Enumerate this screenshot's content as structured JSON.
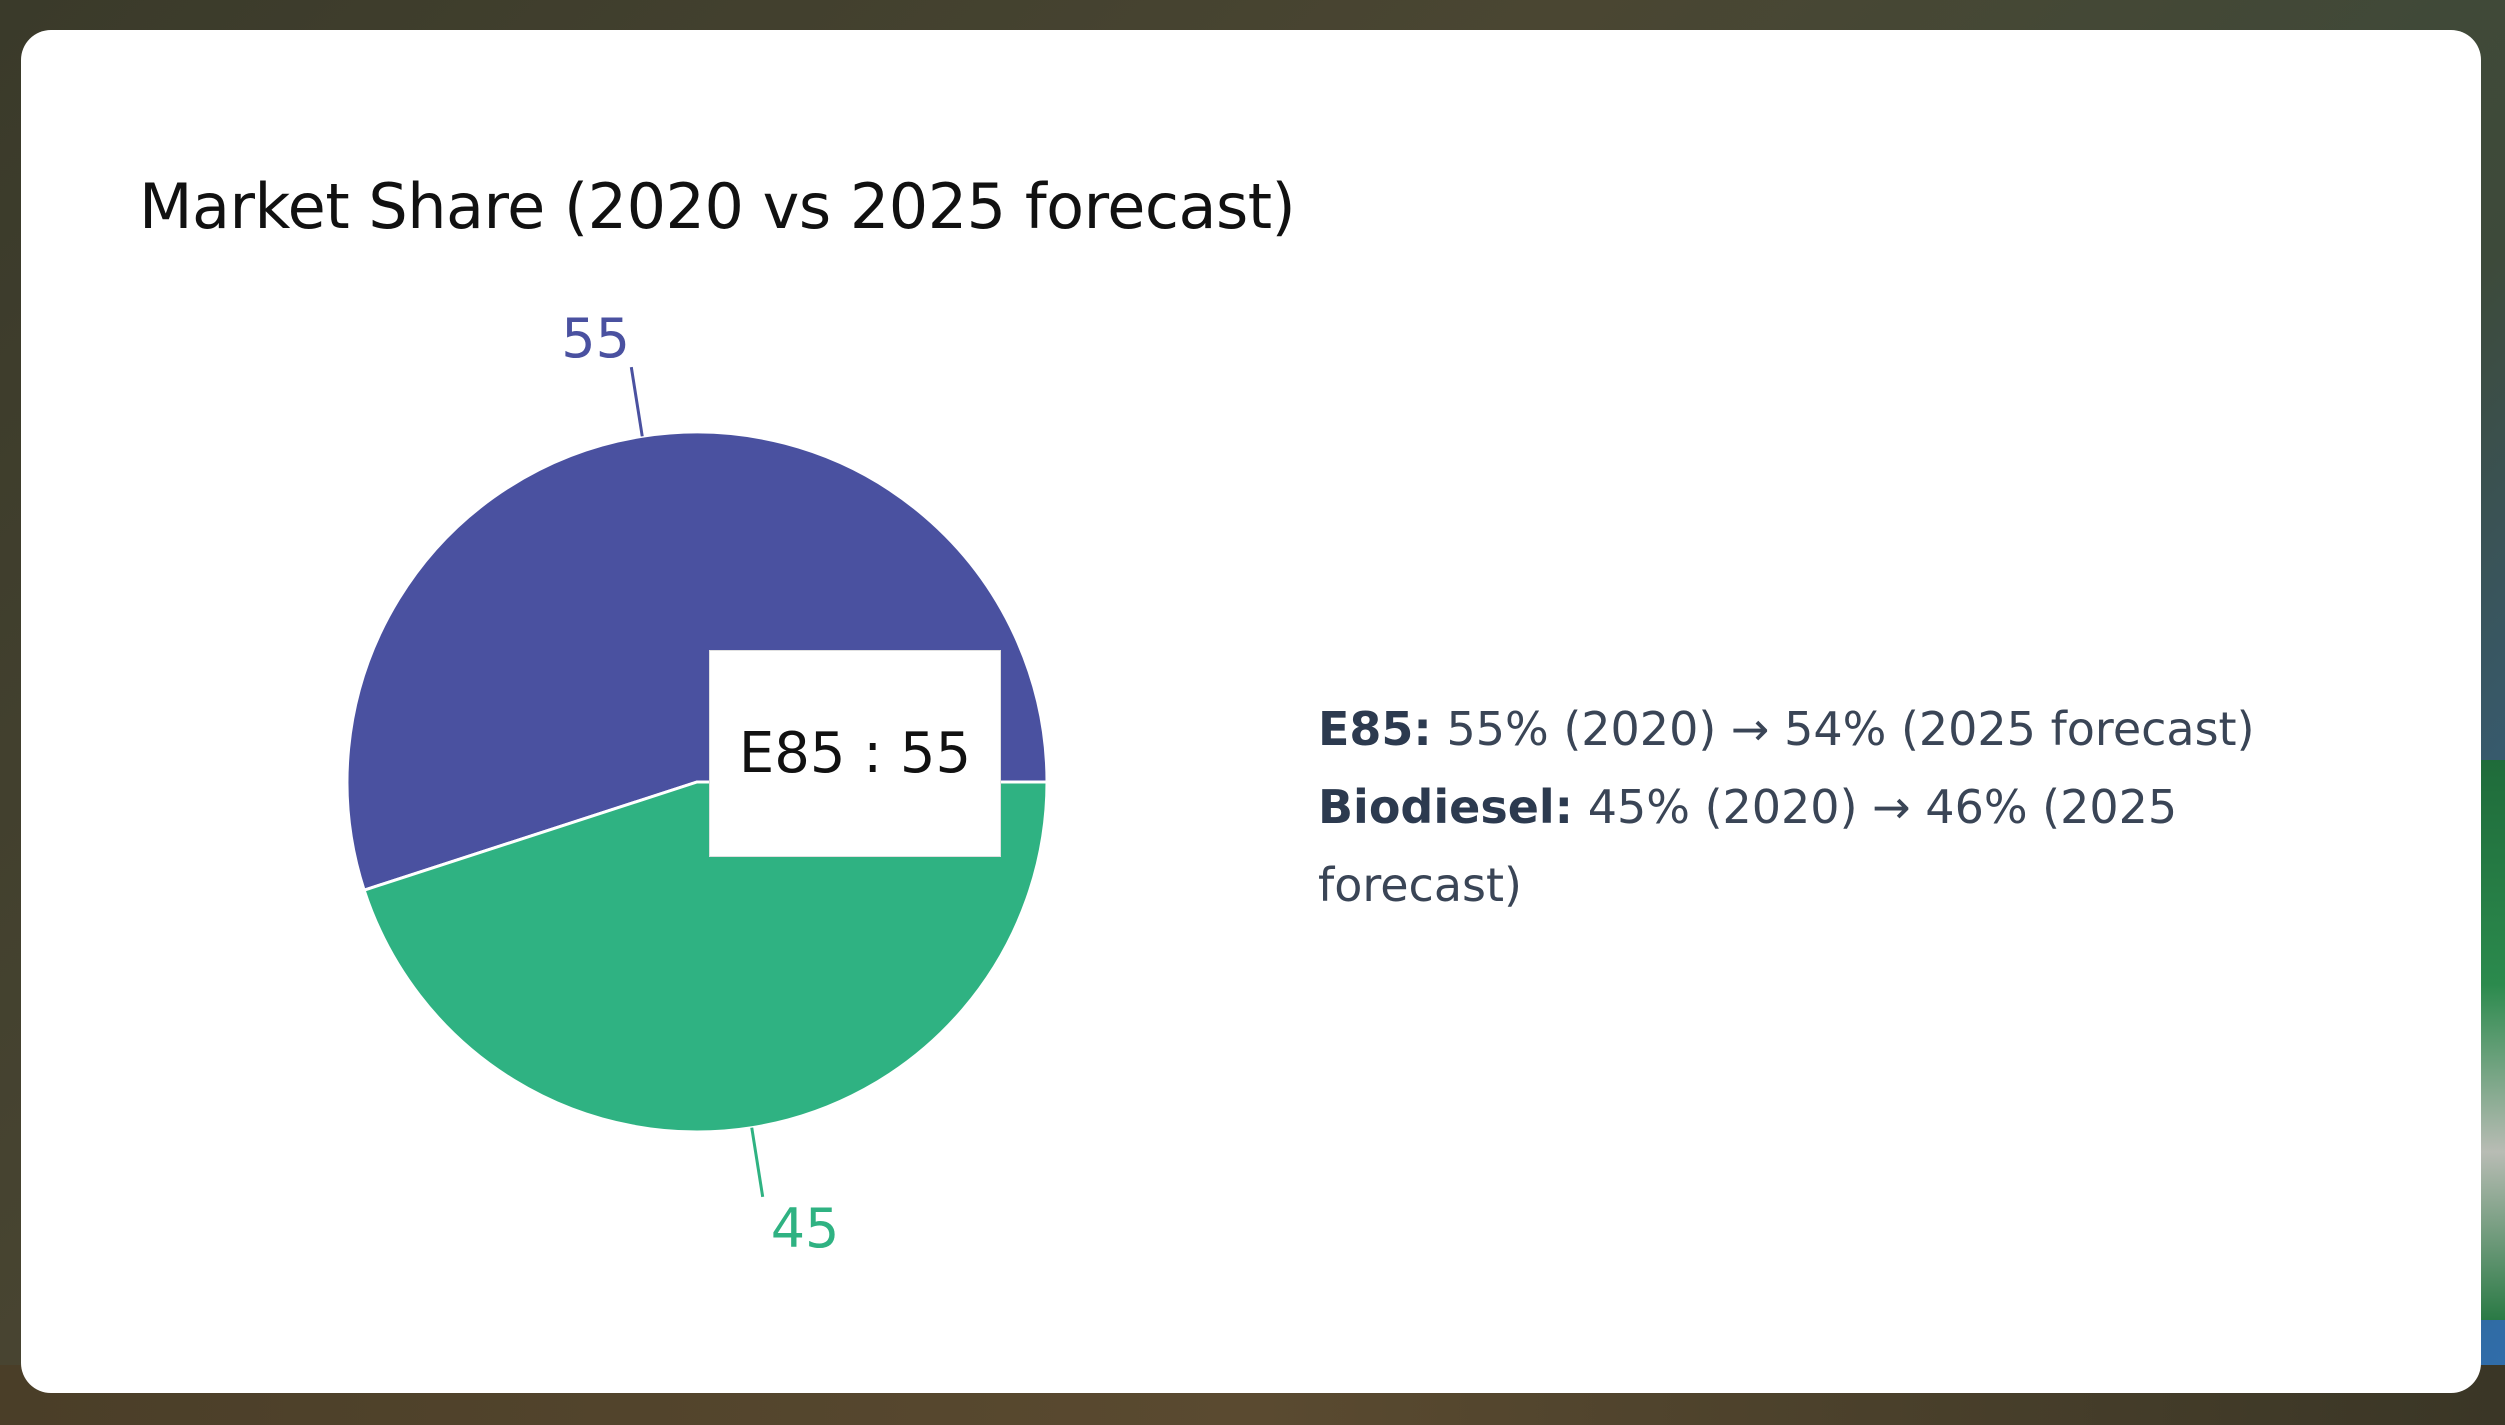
{
  "card": {
    "title": "Market Share (2020 vs 2025 forecast)"
  },
  "chart_data": {
    "type": "pie",
    "title": "Market Share (2020 vs 2025 forecast)",
    "slices": [
      {
        "label": "E85",
        "value": 55,
        "color": "#4a51a0",
        "label_color": "#4a51a0"
      },
      {
        "label": "Biodiesel",
        "value": 45,
        "color": "#2fb282",
        "label_color": "#2fb282"
      }
    ],
    "tooltip": {
      "label": "E85",
      "value": 55
    }
  },
  "tooltip": {
    "text": "E85 : 55"
  },
  "legend": {
    "items": [
      {
        "name": "E85:",
        "text": " 55% (2020) → 54% (2025 forecast)"
      },
      {
        "name": "Biodiesel:",
        "text": " 45% (2020) → 46% (2025 forecast)"
      }
    ]
  }
}
